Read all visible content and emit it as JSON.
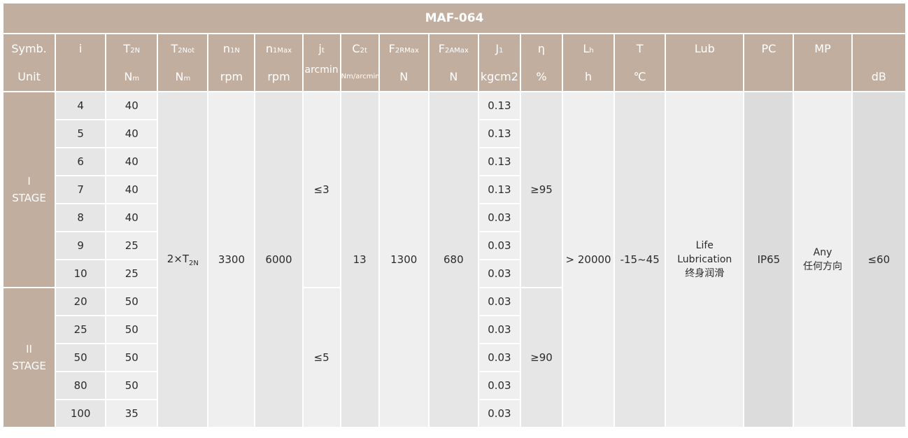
{
  "title": "MAF-064",
  "header": [
    {
      "sym": "Symb.",
      "unit": "Unit"
    },
    {
      "sym": "i",
      "unit": ""
    },
    {
      "sym": "T",
      "sym_sub": "2N",
      "unit": "N",
      "unit_sub": "m"
    },
    {
      "sym": "T",
      "sym_sub": "2Not",
      "unit": "N",
      "unit_sub": "m"
    },
    {
      "sym": "n",
      "sym_sub": "1N",
      "unit": "rpm"
    },
    {
      "sym": "n",
      "sym_sub": "1Max",
      "unit": "rpm"
    },
    {
      "sym": "j",
      "sym_sub": "t",
      "unit": "arcmin"
    },
    {
      "sym": "C",
      "sym_sub": "2t",
      "unit": "Nm/arcmin"
    },
    {
      "sym": "F",
      "sym_sub": "2RMax",
      "unit": "N"
    },
    {
      "sym": "F",
      "sym_sub": "2AMax",
      "unit": "N"
    },
    {
      "sym": "J",
      "sym_sub": "1",
      "unit": "kgcm2"
    },
    {
      "sym": "η",
      "unit": "%"
    },
    {
      "sym": "L",
      "sym_sub": "h",
      "unit": "h"
    },
    {
      "sym": "T",
      "unit": "℃"
    },
    {
      "sym": "Lub",
      "unit": ""
    },
    {
      "sym": "PC",
      "unit": ""
    },
    {
      "sym": "MP",
      "unit": ""
    },
    {
      "sym": "",
      "unit": "dB"
    }
  ],
  "stages": [
    {
      "numeral": "I",
      "label": "STAGE",
      "backlash": "≤3",
      "efficiency": "≥95"
    },
    {
      "numeral": "II",
      "label": "STAGE",
      "backlash": "≤5",
      "efficiency": "≥90"
    }
  ],
  "rows": [
    {
      "i": "4",
      "t2n": "40",
      "j1": "0.13",
      "stage": 0
    },
    {
      "i": "5",
      "t2n": "40",
      "j1": "0.13",
      "stage": 0
    },
    {
      "i": "6",
      "t2n": "40",
      "j1": "0.13",
      "stage": 0
    },
    {
      "i": "7",
      "t2n": "40",
      "j1": "0.13",
      "stage": 0
    },
    {
      "i": "8",
      "t2n": "40",
      "j1": "0.03",
      "stage": 0
    },
    {
      "i": "9",
      "t2n": "25",
      "j1": "0.03",
      "stage": 0
    },
    {
      "i": "10",
      "t2n": "25",
      "j1": "0.03",
      "stage": 0
    },
    {
      "i": "20",
      "t2n": "50",
      "j1": "0.03",
      "stage": 1
    },
    {
      "i": "25",
      "t2n": "50",
      "j1": "0.03",
      "stage": 1
    },
    {
      "i": "50",
      "t2n": "50",
      "j1": "0.03",
      "stage": 1
    },
    {
      "i": "80",
      "t2n": "50",
      "j1": "0.03",
      "stage": 1
    },
    {
      "i": "100",
      "t2n": "35",
      "j1": "0.03",
      "stage": 1
    }
  ],
  "common": {
    "t2not": "2×T",
    "t2not_sub": "2N",
    "n1n": "3300",
    "n1max": "6000",
    "c2t": "13",
    "f2rmax": "1300",
    "f2amax": "680",
    "lh": "> 20000",
    "temp": "-15~45",
    "lub_en1": "Life",
    "lub_en2": "Lubrication",
    "lub_cn": "终身润滑",
    "pc": "IP65",
    "mp_en": "Any",
    "mp_cn": "任何方向",
    "db": "≤60"
  },
  "colors": {
    "header": "#c2ae9e",
    "cell_dark": "#e6e6e6",
    "cell_light": "#efefef",
    "cell_grey": "#dcdcdc"
  }
}
